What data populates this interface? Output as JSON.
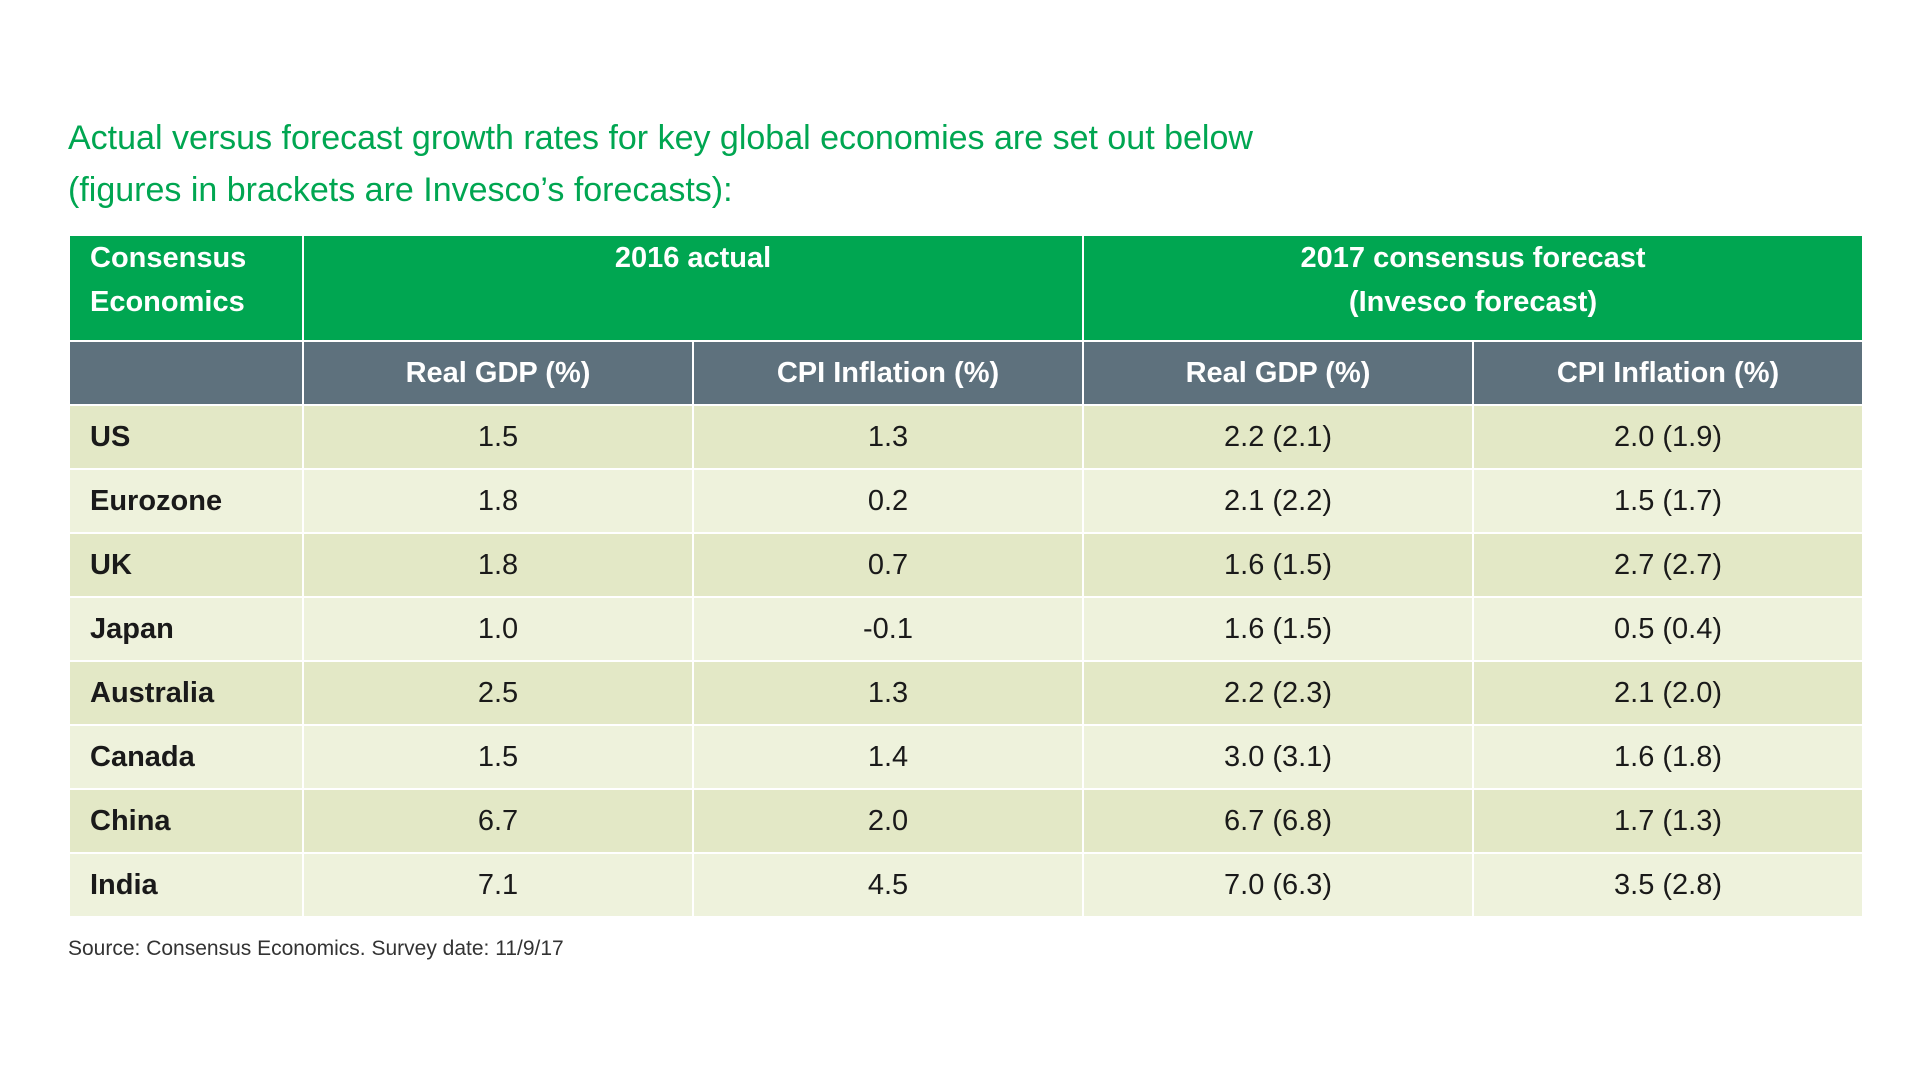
{
  "heading": {
    "line1": "Actual versus forecast growth rates for key global economies are set out below",
    "line2": "(figures in brackets are Invesco’s forecasts):"
  },
  "table": {
    "header": {
      "col0_line1": "Consensus",
      "col0_line2": "Economics",
      "group1": "2016 actual",
      "group2_line1": "2017 consensus forecast",
      "group2_line2": "(Invesco forecast)"
    },
    "subheaders": [
      "",
      "Real GDP (%)",
      "CPI Inflation (%)",
      "Real GDP (%)",
      "CPI Inflation (%)"
    ],
    "rows": [
      {
        "country": "US",
        "gdp_2016": "1.5",
        "cpi_2016": "1.3",
        "gdp_2017": "2.2 (2.1)",
        "cpi_2017": "2.0 (1.9)"
      },
      {
        "country": "Eurozone",
        "gdp_2016": "1.8",
        "cpi_2016": "0.2",
        "gdp_2017": "2.1 (2.2)",
        "cpi_2017": "1.5 (1.7)"
      },
      {
        "country": "UK",
        "gdp_2016": "1.8",
        "cpi_2016": "0.7",
        "gdp_2017": "1.6 (1.5)",
        "cpi_2017": "2.7 (2.7)"
      },
      {
        "country": "Japan",
        "gdp_2016": "1.0",
        "cpi_2016": "-0.1",
        "gdp_2017": "1.6 (1.5)",
        "cpi_2017": "0.5 (0.4)"
      },
      {
        "country": "Australia",
        "gdp_2016": "2.5",
        "cpi_2016": "1.3",
        "gdp_2017": "2.2 (2.3)",
        "cpi_2017": "2.1 (2.0)"
      },
      {
        "country": "Canada",
        "gdp_2016": "1.5",
        "cpi_2016": "1.4",
        "gdp_2017": "3.0 (3.1)",
        "cpi_2017": "1.6 (1.8)"
      },
      {
        "country": "China",
        "gdp_2016": "6.7",
        "cpi_2016": "2.0",
        "gdp_2017": "6.7 (6.8)",
        "cpi_2017": "1.7 (1.3)"
      },
      {
        "country": "India",
        "gdp_2016": "7.1",
        "cpi_2016": "4.5",
        "gdp_2017": "7.0 (6.3)",
        "cpi_2017": "3.5 (2.8)"
      }
    ]
  },
  "source": "Source: Consensus Economics. Survey date: 11/9/17",
  "colors": {
    "accent_green": "#00a651",
    "subheader_gray": "#5e717d",
    "row_dark": "#e3e8c6",
    "row_light": "#eef2dc"
  },
  "chart_data": {
    "type": "table",
    "title": "Actual versus forecast growth rates for key global economies are set out below (figures in brackets are Invesco’s forecasts):",
    "columns": [
      "Consensus Economics",
      "2016 actual Real GDP (%)",
      "2016 actual CPI Inflation (%)",
      "2017 consensus forecast (Invesco forecast) Real GDP (%)",
      "2017 consensus forecast (Invesco forecast) CPI Inflation (%)"
    ],
    "rows": [
      [
        "US",
        1.5,
        1.3,
        "2.2 (2.1)",
        "2.0 (1.9)"
      ],
      [
        "Eurozone",
        1.8,
        0.2,
        "2.1 (2.2)",
        "1.5 (1.7)"
      ],
      [
        "UK",
        1.8,
        0.7,
        "1.6 (1.5)",
        "2.7 (2.7)"
      ],
      [
        "Japan",
        1.0,
        -0.1,
        "1.6 (1.5)",
        "0.5 (0.4)"
      ],
      [
        "Australia",
        2.5,
        1.3,
        "2.2 (2.3)",
        "2.1 (2.0)"
      ],
      [
        "Canada",
        1.5,
        1.4,
        "3.0 (3.1)",
        "1.6 (1.8)"
      ],
      [
        "China",
        6.7,
        2.0,
        "6.7 (6.8)",
        "1.7 (1.3)"
      ],
      [
        "India",
        7.1,
        4.5,
        "7.0 (6.3)",
        "3.5 (2.8)"
      ]
    ]
  }
}
